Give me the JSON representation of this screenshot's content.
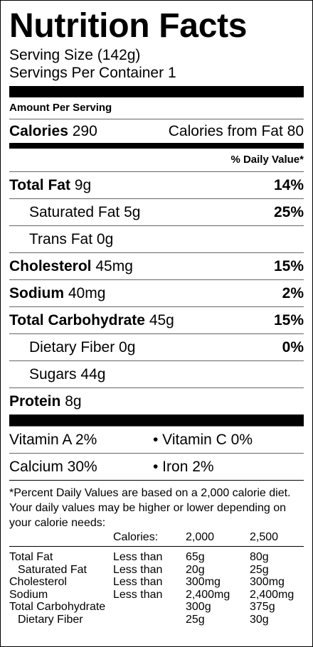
{
  "title": "Nutrition Facts",
  "serving_size": "Serving Size (142g)",
  "servings_per_container": "Servings Per Container 1",
  "amount_per_serving": "Amount Per Serving",
  "calories": {
    "label": "Calories",
    "value": "290"
  },
  "calories_from_fat": "Calories from Fat 80",
  "daily_value_header": "% Daily Value*",
  "nutrients": [
    {
      "label": "Total Fat",
      "amount": "9g",
      "dv": "14%",
      "bold": true,
      "indent": false
    },
    {
      "label": "Saturated Fat",
      "amount": "5g",
      "dv": "25%",
      "bold": false,
      "indent": true
    },
    {
      "label": "Trans Fat",
      "amount": "0g",
      "bold": false,
      "indent": true
    },
    {
      "label": "Cholesterol",
      "amount": "45mg",
      "dv": "15%",
      "bold": true,
      "indent": false
    },
    {
      "label": "Sodium",
      "amount": "40mg",
      "dv": "2%",
      "bold": true,
      "indent": false
    },
    {
      "label": "Total Carbohydrate",
      "amount": "45g",
      "dv": "15%",
      "bold": true,
      "indent": false
    },
    {
      "label": "Dietary Fiber",
      "amount": "0g",
      "dv": "0%",
      "bold": false,
      "indent": true
    },
    {
      "label": "Sugars",
      "amount": "44g",
      "bold": false,
      "indent": true
    },
    {
      "label": "Protein",
      "amount": "8g",
      "bold": true,
      "indent": false
    }
  ],
  "vitamins": [
    [
      "Vitamin A 2%",
      "• Vitamin C 0%"
    ],
    [
      "Calcium 30%",
      "• Iron 2%"
    ]
  ],
  "footnote": "*Percent Daily Values are based on a 2,000 calorie diet. Your daily values may be higher or lower depending on your calorie needs:",
  "reference_table": {
    "header": {
      "label": "Calories:",
      "columns": [
        "2,000",
        "2,500"
      ]
    },
    "rows": [
      {
        "name": "Total Fat",
        "qualifier": "Less than",
        "values": [
          "65g",
          "80g"
        ],
        "indent": false
      },
      {
        "name": "Saturated Fat",
        "qualifier": "Less than",
        "values": [
          "20g",
          "25g"
        ],
        "indent": true
      },
      {
        "name": "Cholesterol",
        "qualifier": "Less than",
        "values": [
          "300mg",
          "300mg"
        ],
        "indent": false
      },
      {
        "name": "Sodium",
        "qualifier": "Less than",
        "values": [
          "2,400mg",
          "2,400mg"
        ],
        "indent": false
      },
      {
        "name": "Total Carbohydrate",
        "values": [
          "300g",
          "375g"
        ],
        "indent": false
      },
      {
        "name": "Dietary Fiber",
        "values": [
          "25g",
          "30g"
        ],
        "indent": true
      }
    ]
  }
}
